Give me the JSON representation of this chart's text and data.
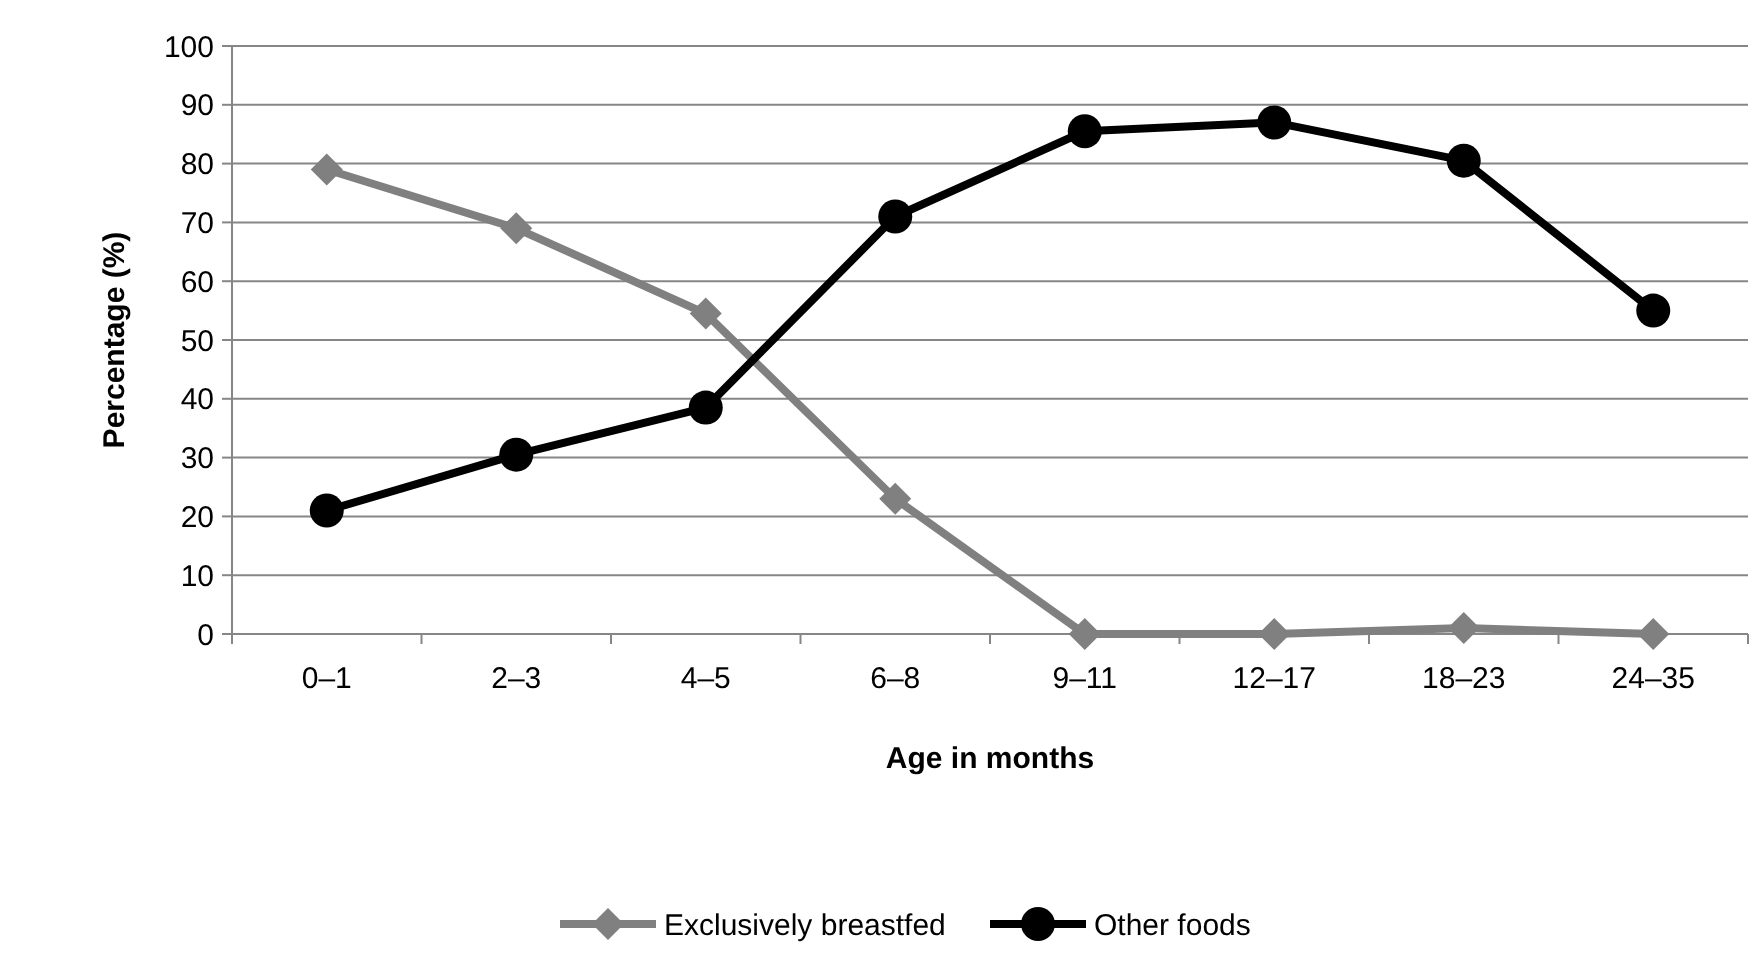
{
  "chart_data": {
    "type": "line",
    "xlabel": "Age in months",
    "ylabel": "Percentage (%)",
    "categories": [
      "0–1",
      "2–3",
      "4–5",
      "6–8",
      "9–11",
      "12–17",
      "18–23",
      "24–35"
    ],
    "series": [
      {
        "name": "Exclusively breastfed",
        "color": "#808080",
        "marker": "diamond",
        "values": [
          79,
          69,
          54.5,
          23,
          0,
          0,
          1,
          0
        ]
      },
      {
        "name": "Other foods",
        "color": "#000000",
        "marker": "circle",
        "values": [
          21,
          30.5,
          38.5,
          71,
          85.5,
          87,
          80.5,
          55
        ]
      }
    ],
    "ylim": [
      0,
      100
    ],
    "yticks": [
      0,
      10,
      20,
      30,
      40,
      50,
      60,
      70,
      80,
      90,
      100
    ],
    "grid": "y",
    "legend": "bottom"
  }
}
